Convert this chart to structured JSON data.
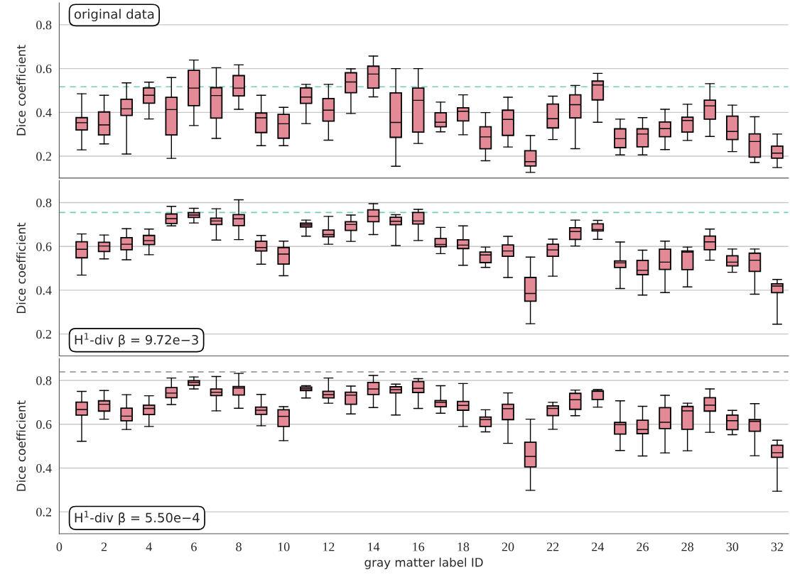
{
  "chart_data": [
    {
      "type": "box",
      "ylabel": "Dice coefficient",
      "annotations": [
        "original data"
      ],
      "xlim": [
        0,
        32.5
      ],
      "ylim": [
        0.1,
        0.9
      ],
      "xticks": [
        0,
        2,
        4,
        6,
        8,
        10,
        12,
        14,
        16,
        18,
        20,
        22,
        24,
        26,
        28,
        30,
        32
      ],
      "yticks": [
        0.2,
        0.4,
        0.6,
        0.8
      ],
      "tick_labels": "y",
      "grid": "y",
      "color": "#e48a97",
      "ref_lines": [
        {
          "axis": "y",
          "value": 0.517,
          "color": "#6fcfb5",
          "line_style": "dashed"
        }
      ],
      "x": [
        1,
        2,
        3,
        4,
        5,
        6,
        7,
        8,
        9,
        10,
        11,
        12,
        13,
        14,
        15,
        16,
        17,
        18,
        19,
        20,
        21,
        22,
        23,
        24,
        25,
        26,
        27,
        28,
        29,
        30,
        31,
        32
      ],
      "boxes": [
        {
          "low": 0.229,
          "q1": 0.32,
          "median": 0.353,
          "q3": 0.376,
          "high": 0.485
        },
        {
          "low": 0.256,
          "q1": 0.297,
          "median": 0.343,
          "q3": 0.402,
          "high": 0.478
        },
        {
          "low": 0.21,
          "q1": 0.386,
          "median": 0.416,
          "q3": 0.46,
          "high": 0.535
        },
        {
          "low": 0.37,
          "q1": 0.442,
          "median": 0.478,
          "q3": 0.512,
          "high": 0.538
        },
        {
          "low": 0.19,
          "q1": 0.297,
          "median": 0.413,
          "q3": 0.469,
          "high": 0.559
        },
        {
          "low": 0.34,
          "q1": 0.431,
          "median": 0.511,
          "q3": 0.592,
          "high": 0.639
        },
        {
          "low": 0.281,
          "q1": 0.374,
          "median": 0.477,
          "q3": 0.513,
          "high": 0.604
        },
        {
          "low": 0.414,
          "q1": 0.475,
          "median": 0.511,
          "q3": 0.568,
          "high": 0.617
        },
        {
          "low": 0.248,
          "q1": 0.308,
          "median": 0.375,
          "q3": 0.397,
          "high": 0.478
        },
        {
          "low": 0.248,
          "q1": 0.282,
          "median": 0.348,
          "q3": 0.391,
          "high": 0.423
        },
        {
          "low": 0.349,
          "q1": 0.441,
          "median": 0.47,
          "q3": 0.512,
          "high": 0.528
        },
        {
          "low": 0.273,
          "q1": 0.36,
          "median": 0.41,
          "q3": 0.463,
          "high": 0.528
        },
        {
          "low": 0.395,
          "q1": 0.49,
          "median": 0.539,
          "q3": 0.581,
          "high": 0.599
        },
        {
          "low": 0.471,
          "q1": 0.511,
          "median": 0.575,
          "q3": 0.611,
          "high": 0.657
        },
        {
          "low": 0.154,
          "q1": 0.286,
          "median": 0.354,
          "q3": 0.489,
          "high": 0.6
        },
        {
          "low": 0.258,
          "q1": 0.31,
          "median": 0.455,
          "q3": 0.511,
          "high": 0.6
        },
        {
          "low": 0.311,
          "q1": 0.334,
          "median": 0.355,
          "q3": 0.398,
          "high": 0.447
        },
        {
          "low": 0.298,
          "q1": 0.361,
          "median": 0.405,
          "q3": 0.421,
          "high": 0.48
        },
        {
          "low": 0.179,
          "q1": 0.234,
          "median": 0.288,
          "q3": 0.334,
          "high": 0.399
        },
        {
          "low": 0.242,
          "q1": 0.295,
          "median": 0.368,
          "q3": 0.41,
          "high": 0.469
        },
        {
          "low": 0.126,
          "q1": 0.155,
          "median": 0.175,
          "q3": 0.225,
          "high": 0.294
        },
        {
          "low": 0.276,
          "q1": 0.329,
          "median": 0.371,
          "q3": 0.438,
          "high": 0.474
        },
        {
          "low": 0.234,
          "q1": 0.375,
          "median": 0.435,
          "q3": 0.48,
          "high": 0.523
        },
        {
          "low": 0.355,
          "q1": 0.457,
          "median": 0.525,
          "q3": 0.543,
          "high": 0.578
        },
        {
          "low": 0.206,
          "q1": 0.239,
          "median": 0.28,
          "q3": 0.325,
          "high": 0.369
        },
        {
          "low": 0.206,
          "q1": 0.243,
          "median": 0.301,
          "q3": 0.325,
          "high": 0.376
        },
        {
          "low": 0.23,
          "q1": 0.289,
          "median": 0.326,
          "q3": 0.356,
          "high": 0.414
        },
        {
          "low": 0.272,
          "q1": 0.31,
          "median": 0.363,
          "q3": 0.378,
          "high": 0.437
        },
        {
          "low": 0.29,
          "q1": 0.369,
          "median": 0.43,
          "q3": 0.456,
          "high": 0.531
        },
        {
          "low": 0.221,
          "q1": 0.276,
          "median": 0.313,
          "q3": 0.383,
          "high": 0.433
        },
        {
          "low": 0.171,
          "q1": 0.196,
          "median": 0.267,
          "q3": 0.302,
          "high": 0.38
        },
        {
          "low": 0.148,
          "q1": 0.191,
          "median": 0.214,
          "q3": 0.246,
          "high": 0.301
        }
      ]
    },
    {
      "type": "box",
      "ylabel": "Dice coefficient",
      "annotations": [
        "H$^{1}$-div β = 9.72e−3"
      ],
      "xlim": [
        0,
        32.5
      ],
      "ylim": [
        0.1,
        0.9
      ],
      "xticks": [
        0,
        2,
        4,
        6,
        8,
        10,
        12,
        14,
        16,
        18,
        20,
        22,
        24,
        26,
        28,
        30,
        32
      ],
      "yticks": [
        0.2,
        0.4,
        0.6,
        0.8
      ],
      "tick_labels": "y",
      "grid": "y",
      "color": "#e48a97",
      "ref_lines": [
        {
          "axis": "y",
          "value": 0.755,
          "color": "#6fcfb5",
          "line_style": "dashed"
        }
      ],
      "x": [
        1,
        2,
        3,
        4,
        5,
        6,
        7,
        8,
        9,
        10,
        11,
        12,
        13,
        14,
        15,
        16,
        17,
        18,
        19,
        20,
        21,
        22,
        23,
        24,
        25,
        26,
        27,
        28,
        29,
        30,
        31,
        32
      ],
      "boxes": [
        {
          "low": 0.469,
          "q1": 0.548,
          "median": 0.587,
          "q3": 0.621,
          "high": 0.657
        },
        {
          "low": 0.543,
          "q1": 0.577,
          "median": 0.602,
          "q3": 0.619,
          "high": 0.652
        },
        {
          "low": 0.539,
          "q1": 0.585,
          "median": 0.61,
          "q3": 0.64,
          "high": 0.681
        },
        {
          "low": 0.562,
          "q1": 0.608,
          "median": 0.626,
          "q3": 0.65,
          "high": 0.679
        },
        {
          "low": 0.694,
          "q1": 0.705,
          "median": 0.727,
          "q3": 0.748,
          "high": 0.783
        },
        {
          "low": 0.707,
          "q1": 0.732,
          "median": 0.743,
          "q3": 0.754,
          "high": 0.774
        },
        {
          "low": 0.629,
          "q1": 0.7,
          "median": 0.716,
          "q3": 0.729,
          "high": 0.772
        },
        {
          "low": 0.631,
          "q1": 0.695,
          "median": 0.726,
          "q3": 0.745,
          "high": 0.813
        },
        {
          "low": 0.519,
          "q1": 0.579,
          "median": 0.595,
          "q3": 0.624,
          "high": 0.65
        },
        {
          "low": 0.466,
          "q1": 0.519,
          "median": 0.565,
          "q3": 0.595,
          "high": 0.624
        },
        {
          "low": 0.647,
          "q1": 0.689,
          "median": 0.698,
          "q3": 0.706,
          "high": 0.72
        },
        {
          "low": 0.61,
          "q1": 0.644,
          "median": 0.654,
          "q3": 0.675,
          "high": 0.737
        },
        {
          "low": 0.623,
          "q1": 0.673,
          "median": 0.7,
          "q3": 0.713,
          "high": 0.743
        },
        {
          "low": 0.654,
          "q1": 0.713,
          "median": 0.737,
          "q3": 0.767,
          "high": 0.795
        },
        {
          "low": 0.604,
          "q1": 0.699,
          "median": 0.715,
          "q3": 0.733,
          "high": 0.745
        },
        {
          "low": 0.627,
          "q1": 0.702,
          "median": 0.716,
          "q3": 0.755,
          "high": 0.769
        },
        {
          "low": 0.567,
          "q1": 0.599,
          "median": 0.609,
          "q3": 0.636,
          "high": 0.687
        },
        {
          "low": 0.514,
          "q1": 0.59,
          "median": 0.606,
          "q3": 0.63,
          "high": 0.694
        },
        {
          "low": 0.504,
          "q1": 0.526,
          "median": 0.561,
          "q3": 0.574,
          "high": 0.597
        },
        {
          "low": 0.458,
          "q1": 0.555,
          "median": 0.579,
          "q3": 0.607,
          "high": 0.646
        },
        {
          "low": 0.247,
          "q1": 0.35,
          "median": 0.385,
          "q3": 0.458,
          "high": 0.551
        },
        {
          "low": 0.464,
          "q1": 0.555,
          "median": 0.584,
          "q3": 0.61,
          "high": 0.633
        },
        {
          "low": 0.602,
          "q1": 0.632,
          "median": 0.668,
          "q3": 0.685,
          "high": 0.72
        },
        {
          "low": 0.632,
          "q1": 0.671,
          "median": 0.677,
          "q3": 0.703,
          "high": 0.719
        },
        {
          "low": 0.408,
          "q1": 0.504,
          "median": 0.525,
          "q3": 0.534,
          "high": 0.62
        },
        {
          "low": 0.378,
          "q1": 0.471,
          "median": 0.491,
          "q3": 0.536,
          "high": 0.583
        },
        {
          "low": 0.389,
          "q1": 0.495,
          "median": 0.528,
          "q3": 0.587,
          "high": 0.624
        },
        {
          "low": 0.415,
          "q1": 0.494,
          "median": 0.574,
          "q3": 0.579,
          "high": 0.597
        },
        {
          "low": 0.537,
          "q1": 0.585,
          "median": 0.621,
          "q3": 0.647,
          "high": 0.679
        },
        {
          "low": 0.482,
          "q1": 0.511,
          "median": 0.528,
          "q3": 0.557,
          "high": 0.588
        },
        {
          "low": 0.382,
          "q1": 0.486,
          "median": 0.537,
          "q3": 0.569,
          "high": 0.588
        },
        {
          "low": 0.245,
          "q1": 0.389,
          "median": 0.419,
          "q3": 0.429,
          "high": 0.449
        }
      ]
    },
    {
      "type": "box",
      "ylabel": "Dice coefficient",
      "xlabel": "gray matter label ID",
      "annotations": [
        "H$^{1}$-div β = 5.50e−4"
      ],
      "xlim": [
        0,
        32.5
      ],
      "ylim": [
        0.1,
        0.9
      ],
      "xticks": [
        0,
        2,
        4,
        6,
        8,
        10,
        12,
        14,
        16,
        18,
        20,
        22,
        24,
        26,
        28,
        30,
        32
      ],
      "yticks": [
        0.2,
        0.4,
        0.6,
        0.8
      ],
      "grid": "y",
      "color": "#e48a97",
      "ref_lines": [
        {
          "axis": "y",
          "value": 0.839,
          "color": "#8a8a8a",
          "line_style": "dashed"
        }
      ],
      "x": [
        1,
        2,
        3,
        4,
        5,
        6,
        7,
        8,
        9,
        10,
        11,
        12,
        13,
        14,
        15,
        16,
        17,
        18,
        19,
        20,
        21,
        22,
        23,
        24,
        25,
        26,
        27,
        28,
        29,
        30,
        31,
        32
      ],
      "boxes": [
        {
          "low": 0.522,
          "q1": 0.642,
          "median": 0.667,
          "q3": 0.701,
          "high": 0.75
        },
        {
          "low": 0.623,
          "q1": 0.66,
          "median": 0.691,
          "q3": 0.707,
          "high": 0.754
        },
        {
          "low": 0.576,
          "q1": 0.616,
          "median": 0.637,
          "q3": 0.673,
          "high": 0.735
        },
        {
          "low": 0.59,
          "q1": 0.644,
          "median": 0.672,
          "q3": 0.687,
          "high": 0.73
        },
        {
          "low": 0.69,
          "q1": 0.721,
          "median": 0.742,
          "q3": 0.767,
          "high": 0.811
        },
        {
          "low": 0.761,
          "q1": 0.778,
          "median": 0.791,
          "q3": 0.799,
          "high": 0.816
        },
        {
          "low": 0.661,
          "q1": 0.731,
          "median": 0.746,
          "q3": 0.761,
          "high": 0.818
        },
        {
          "low": 0.673,
          "q1": 0.733,
          "median": 0.765,
          "q3": 0.772,
          "high": 0.832
        },
        {
          "low": 0.593,
          "q1": 0.645,
          "median": 0.664,
          "q3": 0.678,
          "high": 0.736
        },
        {
          "low": 0.525,
          "q1": 0.59,
          "median": 0.636,
          "q3": 0.666,
          "high": 0.68
        },
        {
          "low": 0.72,
          "q1": 0.754,
          "median": 0.762,
          "q3": 0.77,
          "high": 0.776
        },
        {
          "low": 0.696,
          "q1": 0.72,
          "median": 0.735,
          "q3": 0.75,
          "high": 0.811
        },
        {
          "low": 0.647,
          "q1": 0.691,
          "median": 0.733,
          "q3": 0.746,
          "high": 0.774
        },
        {
          "low": 0.676,
          "q1": 0.736,
          "median": 0.761,
          "q3": 0.791,
          "high": 0.823
        },
        {
          "low": 0.642,
          "q1": 0.743,
          "median": 0.758,
          "q3": 0.771,
          "high": 0.783
        },
        {
          "low": 0.672,
          "q1": 0.745,
          "median": 0.764,
          "q3": 0.795,
          "high": 0.808
        },
        {
          "low": 0.65,
          "q1": 0.68,
          "median": 0.7,
          "q3": 0.708,
          "high": 0.776
        },
        {
          "low": 0.59,
          "q1": 0.664,
          "median": 0.686,
          "q3": 0.704,
          "high": 0.786
        },
        {
          "low": 0.565,
          "q1": 0.59,
          "median": 0.621,
          "q3": 0.633,
          "high": 0.666
        },
        {
          "low": 0.513,
          "q1": 0.621,
          "median": 0.671,
          "q3": 0.691,
          "high": 0.743
        },
        {
          "low": 0.298,
          "q1": 0.405,
          "median": 0.453,
          "q3": 0.518,
          "high": 0.623
        },
        {
          "low": 0.577,
          "q1": 0.639,
          "median": 0.672,
          "q3": 0.684,
          "high": 0.7
        },
        {
          "low": 0.639,
          "q1": 0.668,
          "median": 0.712,
          "q3": 0.741,
          "high": 0.756
        },
        {
          "low": 0.678,
          "q1": 0.713,
          "median": 0.75,
          "q3": 0.753,
          "high": 0.759
        },
        {
          "low": 0.48,
          "q1": 0.555,
          "median": 0.598,
          "q3": 0.608,
          "high": 0.707
        },
        {
          "low": 0.455,
          "q1": 0.557,
          "median": 0.576,
          "q3": 0.618,
          "high": 0.682
        },
        {
          "low": 0.469,
          "q1": 0.58,
          "median": 0.609,
          "q3": 0.676,
          "high": 0.732
        },
        {
          "low": 0.479,
          "q1": 0.577,
          "median": 0.661,
          "q3": 0.681,
          "high": 0.696
        },
        {
          "low": 0.563,
          "q1": 0.66,
          "median": 0.687,
          "q3": 0.721,
          "high": 0.761
        },
        {
          "low": 0.552,
          "q1": 0.575,
          "median": 0.616,
          "q3": 0.642,
          "high": 0.663
        },
        {
          "low": 0.456,
          "q1": 0.568,
          "median": 0.613,
          "q3": 0.621,
          "high": 0.694
        },
        {
          "low": 0.294,
          "q1": 0.449,
          "median": 0.47,
          "q3": 0.504,
          "high": 0.527
        }
      ]
    }
  ]
}
